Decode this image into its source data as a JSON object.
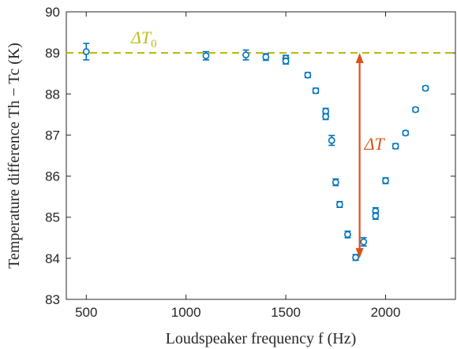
{
  "chart_data": {
    "type": "scatter",
    "xlabel": "Loudspeaker frequency f (Hz)",
    "ylabel": "Temperature difference Th − Tc (K)",
    "xlim": [
      400,
      2350
    ],
    "ylim": [
      83,
      90
    ],
    "xticks": [
      500,
      1000,
      1500,
      2000
    ],
    "yticks": [
      83,
      84,
      85,
      86,
      87,
      88,
      89,
      90
    ],
    "grid": false,
    "colors": {
      "points": "#0072BD",
      "baseline": "#BDBD1A",
      "arrow": "#D95319",
      "axis": "#262626"
    },
    "baseline": {
      "label": "ΔT0",
      "y": 89.0
    },
    "arrow": {
      "label": "ΔT",
      "x": 1870,
      "y_from": 84.0,
      "y_to": 89.0
    },
    "points": [
      {
        "x": 500,
        "y": 89.03,
        "err": 0.2
      },
      {
        "x": 1100,
        "y": 88.93,
        "err": 0.1
      },
      {
        "x": 1300,
        "y": 88.95,
        "err": 0.12
      },
      {
        "x": 1400,
        "y": 88.9,
        "err": 0.08
      },
      {
        "x": 1500,
        "y": 88.87,
        "err": 0.07
      },
      {
        "x": 1500,
        "y": 88.8,
        "err": 0.07
      },
      {
        "x": 1610,
        "y": 88.46,
        "err": 0.06
      },
      {
        "x": 1650,
        "y": 88.08,
        "err": 0.06
      },
      {
        "x": 1700,
        "y": 87.58,
        "err": 0.07
      },
      {
        "x": 1700,
        "y": 87.45,
        "err": 0.07
      },
      {
        "x": 1730,
        "y": 86.87,
        "err": 0.12
      },
      {
        "x": 1750,
        "y": 85.85,
        "err": 0.08
      },
      {
        "x": 1770,
        "y": 85.31,
        "err": 0.07
      },
      {
        "x": 1810,
        "y": 84.58,
        "err": 0.08
      },
      {
        "x": 1850,
        "y": 84.02,
        "err": 0.07
      },
      {
        "x": 1890,
        "y": 84.4,
        "err": 0.1
      },
      {
        "x": 1950,
        "y": 85.15,
        "err": 0.08
      },
      {
        "x": 1950,
        "y": 85.03,
        "err": 0.08
      },
      {
        "x": 2000,
        "y": 85.89,
        "err": 0.07
      },
      {
        "x": 2050,
        "y": 86.73,
        "err": 0.06
      },
      {
        "x": 2100,
        "y": 87.05,
        "err": 0.05
      },
      {
        "x": 2150,
        "y": 87.62,
        "err": 0.05
      },
      {
        "x": 2200,
        "y": 88.14,
        "err": 0.05
      }
    ]
  }
}
